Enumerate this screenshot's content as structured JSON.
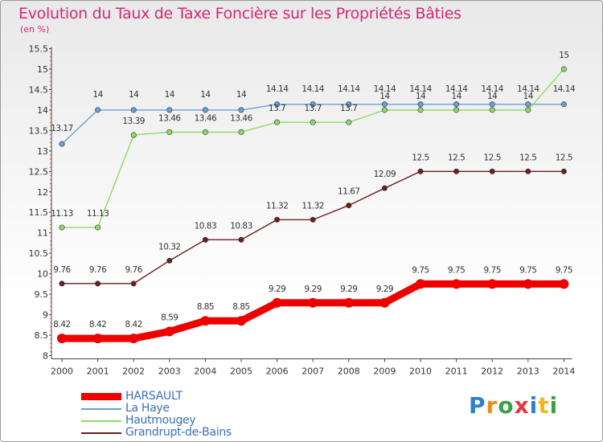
{
  "chart_data": {
    "type": "line",
    "title": "Evolution du Taux de Taxe Foncière sur les Propriétés Bâties",
    "subtitle": "(en %)",
    "x": [
      "2000",
      "2001",
      "2002",
      "2003",
      "2004",
      "2005",
      "2006",
      "2007",
      "2008",
      "2009",
      "2010",
      "2011",
      "2012",
      "2013",
      "2014"
    ],
    "ylim": [
      8,
      15.5
    ],
    "yticks": [
      "8",
      "8.5",
      "9",
      "9.5",
      "10",
      "10.5",
      "11",
      "11.5",
      "12",
      "12.5",
      "13",
      "13.5",
      "14",
      "14.5",
      "15",
      "15.5"
    ],
    "grid": false,
    "legend_position": "bottom-left",
    "series": [
      {
        "name": "HARSAULT",
        "color": "#ee0000",
        "values": [
          8.42,
          8.42,
          8.42,
          8.59,
          8.85,
          8.85,
          9.29,
          9.29,
          9.29,
          9.29,
          9.75,
          9.75,
          9.75,
          9.75,
          9.75
        ],
        "labels": [
          "8.42",
          "8.42",
          "8.42",
          "8.59",
          "8.85",
          "8.85",
          "9.29",
          "9.29",
          "9.29",
          "9.29",
          "9.75",
          "9.75",
          "9.75",
          "9.75",
          "9.75"
        ]
      },
      {
        "name": "La Haye",
        "color": "#6a9fd6",
        "values": [
          13.17,
          14,
          14,
          14,
          14,
          14,
          14.14,
          14.14,
          14.14,
          14.14,
          14.14,
          14.14,
          14.14,
          14.14,
          14.14
        ],
        "labels": [
          "13.17",
          "14",
          "14",
          "14",
          "14",
          "14",
          "14.14",
          "14.14",
          "14.14",
          "14.14",
          "14.14",
          "14.14",
          "14.14",
          "14.14",
          "14.14"
        ]
      },
      {
        "name": "Hautmougey",
        "color": "#8ed968",
        "values": [
          11.13,
          11.13,
          13.39,
          13.46,
          13.46,
          13.46,
          13.7,
          13.7,
          13.7,
          14,
          14,
          14,
          14,
          14,
          15
        ],
        "labels": [
          "11.13",
          "11.13",
          "13.39",
          "13.46",
          "13.46",
          "13.46",
          "13.7",
          "13.7",
          "13.7",
          "14",
          "14",
          "14",
          "14",
          "14",
          "15"
        ]
      },
      {
        "name": "Grandrupt-de-Bains",
        "color": "#6b1f1f",
        "values": [
          9.76,
          9.76,
          9.76,
          10.32,
          10.83,
          10.83,
          11.32,
          11.32,
          11.67,
          12.09,
          12.5,
          12.5,
          12.5,
          12.5,
          12.5
        ],
        "labels": [
          "9.76",
          "9.76",
          "9.76",
          "10.32",
          "10.83",
          "10.83",
          "11.32",
          "11.32",
          "11.67",
          "12.09",
          "12.5",
          "12.5",
          "12.5",
          "12.5",
          "12.5"
        ]
      }
    ]
  },
  "logo": {
    "text": "Proxiti"
  }
}
